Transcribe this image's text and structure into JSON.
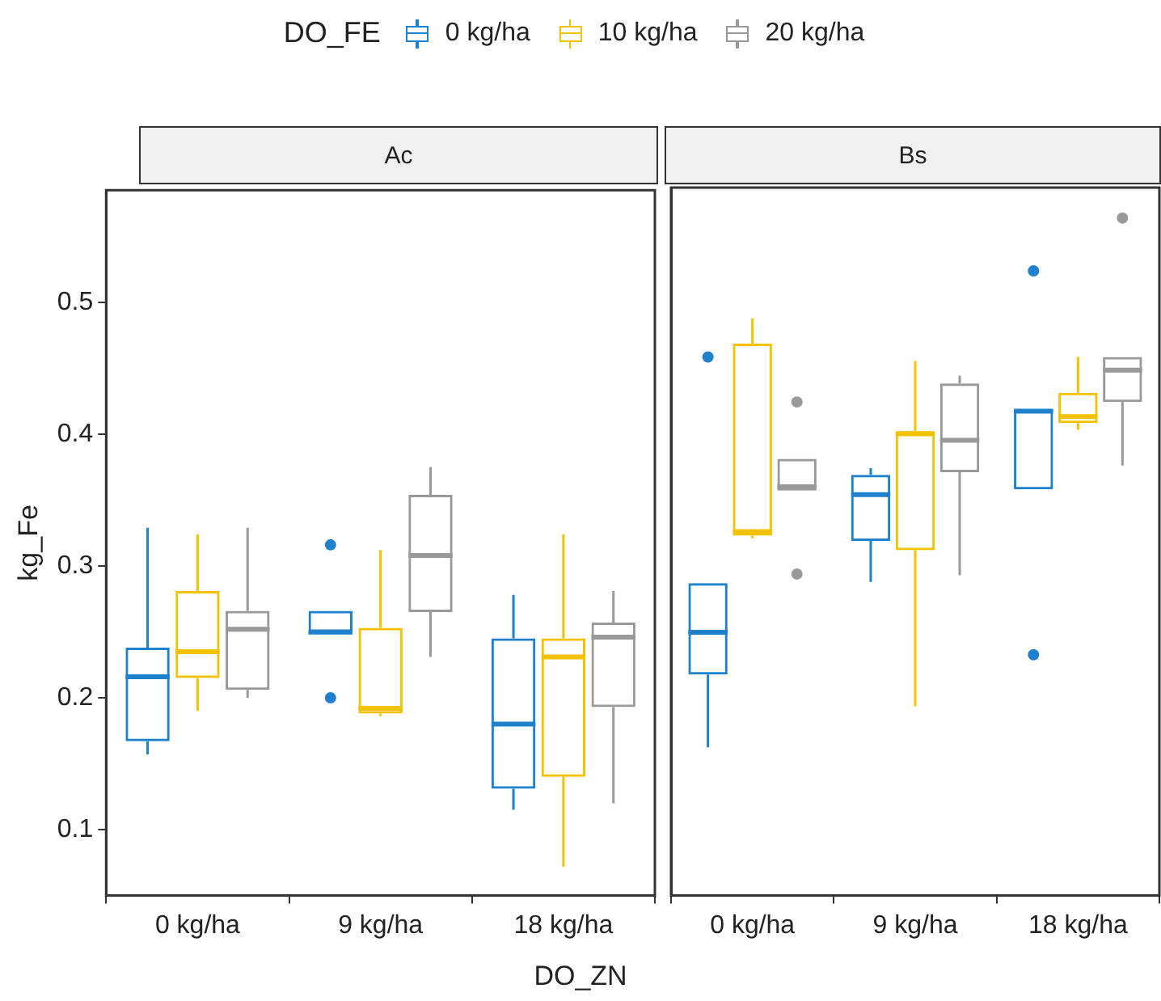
{
  "chart_data": [
    {
      "type": "box",
      "title": "Ac",
      "ylabel": "kg_Fe",
      "xlabel": "DO_ZN",
      "legend_title": "DO_FE",
      "legend": "top",
      "grid": false,
      "categories": [
        "0 kg/ha",
        "9 kg/ha",
        "18 kg/ha"
      ],
      "ylim": [
        0.05,
        0.585
      ],
      "yticks": [
        0.1,
        0.2,
        0.3,
        0.4,
        0.5
      ],
      "series": [
        {
          "name": "0 kg/ha",
          "color": "#1f80cc",
          "boxes": [
            {
              "low": 0.157,
              "q1": 0.167,
              "median": 0.216,
              "q3": 0.238,
              "high": 0.329
            },
            {
              "low": 0.248,
              "q1": 0.248,
              "median": 0.25,
              "q3": 0.266,
              "high": 0.266,
              "outliers": [
                0.316,
                0.2
              ]
            },
            {
              "low": 0.115,
              "q1": 0.131,
              "median": 0.18,
              "q3": 0.245,
              "high": 0.278
            }
          ]
        },
        {
          "name": "10 kg/ha",
          "color": "#f2c200",
          "boxes": [
            {
              "low": 0.19,
              "q1": 0.215,
              "median": 0.235,
              "q3": 0.281,
              "high": 0.324
            },
            {
              "low": 0.186,
              "q1": 0.188,
              "median": 0.192,
              "q3": 0.253,
              "high": 0.312
            },
            {
              "low": 0.072,
              "q1": 0.14,
              "median": 0.231,
              "q3": 0.245,
              "high": 0.324
            }
          ]
        },
        {
          "name": "20 kg/ha",
          "color": "#999999",
          "boxes": [
            {
              "low": 0.2,
              "q1": 0.206,
              "median": 0.252,
              "q3": 0.266,
              "high": 0.329
            },
            {
              "low": 0.231,
              "q1": 0.265,
              "median": 0.308,
              "q3": 0.354,
              "high": 0.375
            },
            {
              "low": 0.12,
              "q1": 0.193,
              "median": 0.246,
              "q3": 0.257,
              "high": 0.281
            }
          ]
        }
      ]
    },
    {
      "type": "box",
      "title": "Bs",
      "tick_labels": "x",
      "grid": false,
      "categories": [
        "0 kg/ha",
        "9 kg/ha",
        "18 kg/ha"
      ],
      "ylim": [
        0.05,
        0.585
      ],
      "yticks": [
        0.1,
        0.2,
        0.3,
        0.4,
        0.5
      ],
      "series": [
        {
          "color": "#1f80cc",
          "boxes": [
            {
              "low": 0.162,
              "q1": 0.217,
              "median": 0.249,
              "q3": 0.286,
              "high": 0.286,
              "outliers": [
                0.457
              ]
            },
            {
              "low": 0.287,
              "q1": 0.318,
              "median": 0.353,
              "q3": 0.368,
              "high": 0.373
            },
            {
              "low": 0.357,
              "q1": 0.357,
              "median": 0.416,
              "q3": 0.417,
              "high": 0.417,
              "outliers": [
                0.522,
                0.232
              ]
            }
          ]
        },
        {
          "color": "#f2c200",
          "boxes": [
            {
              "low": 0.32,
              "q1": 0.322,
              "median": 0.325,
              "q3": 0.467,
              "high": 0.486
            },
            {
              "low": 0.193,
              "q1": 0.311,
              "median": 0.399,
              "q3": 0.401,
              "high": 0.454
            },
            {
              "low": 0.402,
              "q1": 0.407,
              "median": 0.412,
              "q3": 0.43,
              "high": 0.457
            }
          ]
        },
        {
          "color": "#999999",
          "boxes": [
            {
              "low": 0.356,
              "q1": 0.356,
              "median": 0.359,
              "q3": 0.38,
              "high": 0.38,
              "outliers": [
                0.423,
                0.293
              ]
            },
            {
              "low": 0.292,
              "q1": 0.37,
              "median": 0.394,
              "q3": 0.437,
              "high": 0.443
            },
            {
              "low": 0.375,
              "q1": 0.423,
              "median": 0.447,
              "q3": 0.457,
              "high": 0.457,
              "outliers": [
                0.562
              ]
            }
          ]
        }
      ]
    }
  ]
}
